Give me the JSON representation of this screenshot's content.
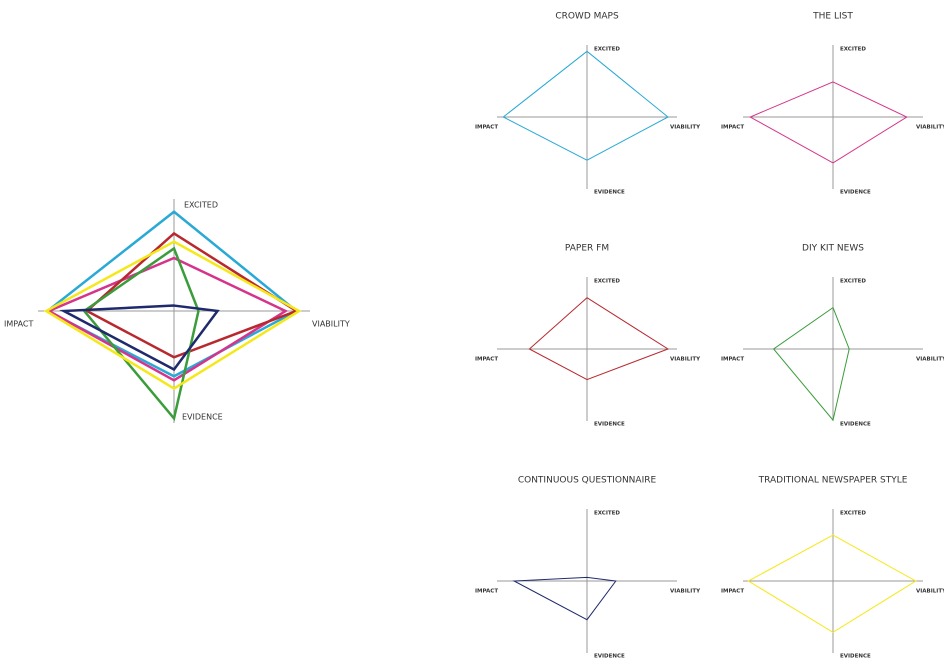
{
  "chart_data": {
    "type": "radar",
    "axes": [
      "EXCITED",
      "VIABILITY",
      "EVIDENCE",
      "IMPACT"
    ],
    "rlim": [
      0,
      10
    ],
    "series": [
      {
        "name": "CROWD MAPS",
        "color": "#29a9d6",
        "values": [
          7.3,
          9.0,
          4.8,
          9.3
        ]
      },
      {
        "name": "THE LIST",
        "color": "#d6338a",
        "values": [
          3.9,
          8.2,
          5.1,
          9.2
        ]
      },
      {
        "name": "PAPER FM",
        "color": "#b8292f",
        "values": [
          5.7,
          9.0,
          3.4,
          6.4
        ]
      },
      {
        "name": "DIY KIT NEWS",
        "color": "#3a9c3a",
        "values": [
          4.6,
          1.8,
          7.9,
          6.6
        ]
      },
      {
        "name": "CONTINUOUS QUESTIONNAIRE",
        "color": "#1f2a6e",
        "values": [
          0.4,
          3.2,
          4.3,
          8.1
        ]
      },
      {
        "name": "TRADITIONAL NEWSPAPER STYLE",
        "color": "#f5e81a",
        "values": [
          5.1,
          9.2,
          5.7,
          9.4
        ]
      }
    ]
  }
}
